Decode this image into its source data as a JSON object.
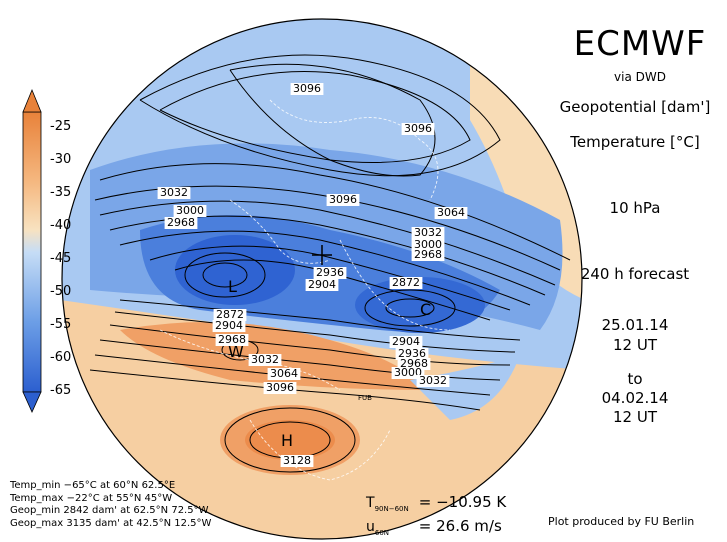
{
  "header": {
    "title": "ECMWF",
    "via": "via DWD"
  },
  "fields": {
    "geopotential": "Geopotential [dam']",
    "temperature": "Temperature [°C]",
    "level": "10 hPa",
    "forecast": "240 h forecast",
    "init_date": "25.01.14",
    "init_time": "12 UT",
    "to": "to",
    "valid_date": "04.02.14",
    "valid_time": "12 UT"
  },
  "colorbar": {
    "labels": [
      "-25",
      "-30",
      "-35",
      "-40",
      "-45",
      "-50",
      "-55",
      "-60",
      "-65"
    ],
    "colors": [
      "#e8823a",
      "#f09a5a",
      "#f5b880",
      "#f8d8b0",
      "#c6ddf6",
      "#9cc2ee",
      "#6c9ee6",
      "#4a7fdc",
      "#2c5fcf"
    ]
  },
  "stats": {
    "temp_min": "Temp_min −65°C at 60°N 62.5°E",
    "temp_max": "Temp_max −22°C at 55°N 45°W",
    "geop_min": "Geop_min 2842 dam' at 62.5°N 72.5°W",
    "geop_max": "Geop_max 3135 dam' at 42.5°N 12.5°W"
  },
  "indices": {
    "t_label": "T",
    "t_sub": "90N−60N",
    "t_value": "= −10.95 K",
    "u_label": "u",
    "u_sub": "60N",
    "u_value": "= 26.6 m/s"
  },
  "credit": "Plot produced by FU Berlin",
  "markers": {
    "low_1": "L",
    "cold_1": "C",
    "warm_1": "W",
    "high_1": "H",
    "fub": "FUB"
  },
  "contour_labels": [
    "3096",
    "3096",
    "3032",
    "3000",
    "2968",
    "3096",
    "3064",
    "3032",
    "3000",
    "2968",
    "2936",
    "2904",
    "2872",
    "2872",
    "2904",
    "2968",
    "3032",
    "3064",
    "3096",
    "2904",
    "2936",
    "2968",
    "3000",
    "3032",
    "3128"
  ]
}
